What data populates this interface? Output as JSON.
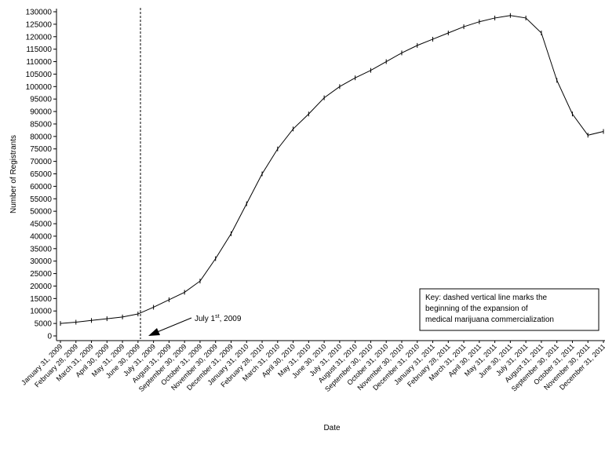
{
  "chart_data": {
    "type": "line",
    "x_label": "Date",
    "y_label": "Number of Registrants",
    "categories": [
      "January 31, 2009",
      "February 28, 2009",
      "March 31, 2009",
      "April 30, 2009",
      "May 31, 2009",
      "June 30, 2009",
      "July 31, 2009",
      "August 31, 2009",
      "September 30, 2009",
      "October 31, 2009",
      "November 30, 2009",
      "December 31, 2009",
      "January 31, 2010",
      "February 28, 2010",
      "March 31, 2010",
      "April 30, 2010",
      "May 31, 2010",
      "June 30, 2010",
      "July 31, 2010",
      "August 31, 2010",
      "September 30, 2010",
      "October 31, 2010",
      "November 30, 2010",
      "December 31, 2010",
      "January 31, 2011",
      "February 28, 2011",
      "March 31, 2011",
      "April 30, 2011",
      "May 31, 2011",
      "June 30, 2011",
      "July 31, 2011",
      "August 31, 2011",
      "September 30, 2011",
      "October 31, 2011",
      "November 30, 2011",
      "December 31, 2011"
    ],
    "values": [
      5000,
      5500,
      6200,
      6900,
      7600,
      8800,
      11500,
      14500,
      17500,
      22000,
      31000,
      41000,
      53000,
      65000,
      75000,
      83000,
      89000,
      95500,
      100000,
      103500,
      106500,
      110000,
      113500,
      116500,
      119000,
      121500,
      124000,
      126000,
      127500,
      128500,
      127500,
      121500,
      102500,
      89000,
      80500,
      82000
    ],
    "color": "#000000",
    "ylim": [
      0,
      130000
    ],
    "yticks": [
      0,
      5000,
      10000,
      15000,
      20000,
      25000,
      30000,
      35000,
      40000,
      45000,
      50000,
      55000,
      60000,
      65000,
      70000,
      75000,
      80000,
      85000,
      90000,
      95000,
      100000,
      105000,
      110000,
      115000,
      120000,
      125000,
      130000
    ],
    "annotation": {
      "parts": [
        "July 1",
        "st",
        ", 2009"
      ]
    },
    "key": [
      "Key: dashed vertical line marks the",
      "beginning of the expansion of",
      "medical marijuana commercialization"
    ]
  }
}
